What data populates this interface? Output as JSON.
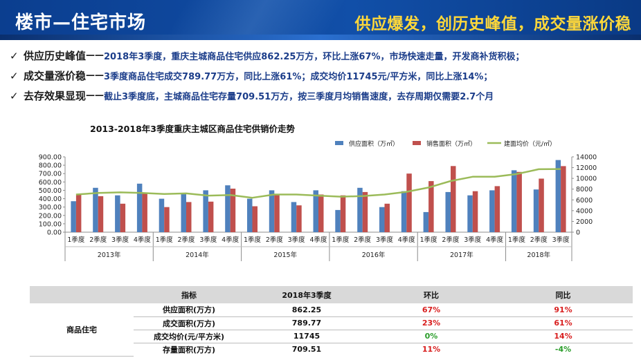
{
  "header": {
    "title": "楼市—住宅市场",
    "slogan": "供应爆发，创历史峰值，成交量涨价稳"
  },
  "bullets": [
    {
      "key": "供应历史峰值",
      "dash": "——",
      "text": "2018年3季度，重庆主城商品住宅供应862.25万方，环比上涨67%，市场快速走量，开发商补货积极；"
    },
    {
      "key": "成交量涨价稳",
      "dash": "——",
      "text": " 3季度商品住宅成交789.77万方，同比上涨61%；成交均价11745元/平方米，同比上涨14%；"
    },
    {
      "key": "去存效果显现",
      "dash": "——",
      "text": "截止3季度底，主城商品住宅存量709.51万方，按三季度月均销售速度，去存周期仅需要2.7个月"
    }
  ],
  "chart_data": {
    "type": "bar",
    "title": "2013-2018年3季度重庆主城区商品住宅供销价走势",
    "categories": [
      "1季度",
      "2季度",
      "3季度",
      "4季度",
      "1季度",
      "2季度",
      "3季度",
      "4季度",
      "1季度",
      "2季度",
      "3季度",
      "4季度",
      "1季度",
      "2季度",
      "3季度",
      "4季度",
      "1季度",
      "2季度",
      "3季度",
      "4季度",
      "1季度",
      "2季度",
      "3季度"
    ],
    "groups": [
      {
        "label": "2013年",
        "count": 4
      },
      {
        "label": "2014年",
        "count": 4
      },
      {
        "label": "2015年",
        "count": 4
      },
      {
        "label": "2016年",
        "count": 4
      },
      {
        "label": "2017年",
        "count": 4
      },
      {
        "label": "2018年",
        "count": 3
      }
    ],
    "series": [
      {
        "name": "供应面积（万㎡）",
        "type": "bar",
        "axis": "left",
        "color": "#4f81bd",
        "values": [
          370,
          530,
          440,
          580,
          400,
          460,
          500,
          560,
          400,
          500,
          360,
          500,
          265,
          530,
          300,
          490,
          240,
          480,
          440,
          500,
          740,
          510,
          862.25
        ]
      },
      {
        "name": "销售面积（万㎡）",
        "type": "bar",
        "axis": "left",
        "color": "#c0504d",
        "values": [
          450,
          430,
          340,
          460,
          300,
          360,
          365,
          520,
          310,
          450,
          320,
          450,
          440,
          480,
          340,
          700,
          610,
          790,
          490,
          550,
          720,
          640,
          789.77
        ]
      },
      {
        "name": "建面均价（元/㎡）",
        "type": "line",
        "axis": "right",
        "color": "#9bbb59",
        "values": [
          7000,
          7300,
          7400,
          7300,
          7100,
          7200,
          6800,
          6900,
          6400,
          7000,
          7000,
          6800,
          6600,
          6700,
          7000,
          7500,
          8300,
          9500,
          10300,
          10300,
          10800,
          11700,
          11745
        ]
      }
    ],
    "y_left": {
      "min": 0,
      "max": 900,
      "step": 100,
      "ticks": [
        "0.00",
        "100.00",
        "200.00",
        "300.00",
        "400.00",
        "500.00",
        "600.00",
        "700.00",
        "800.00",
        "900.00"
      ]
    },
    "y_right": {
      "min": 0,
      "max": 14000,
      "step": 2000,
      "ticks": [
        "0",
        "2000",
        "4000",
        "6000",
        "8000",
        "10000",
        "12000",
        "14000"
      ]
    },
    "legend_position": "top-right",
    "grid": false
  },
  "table": {
    "headers": [
      "指标",
      "2018年3季度",
      "环比",
      "同比"
    ],
    "category": "商品住宅",
    "rows": [
      {
        "indicator": "供应面积(万方)",
        "value": "862.25",
        "qoq": "67%",
        "qoq_color": "red",
        "yoy": "91%",
        "yoy_color": "red"
      },
      {
        "indicator": "成交面积(万方)",
        "value": "789.77",
        "qoq": "23%",
        "qoq_color": "red",
        "yoy": "61%",
        "yoy_color": "red"
      },
      {
        "indicator": "成交均价(元/平方米)",
        "value": "11745",
        "qoq": "0%",
        "qoq_color": "green",
        "yoy": "14%",
        "yoy_color": "red"
      },
      {
        "indicator": "存量面积(万方)",
        "value": "709.51",
        "qoq": "11%",
        "qoq_color": "red",
        "yoy": "-4%",
        "yoy_color": "green"
      }
    ]
  }
}
